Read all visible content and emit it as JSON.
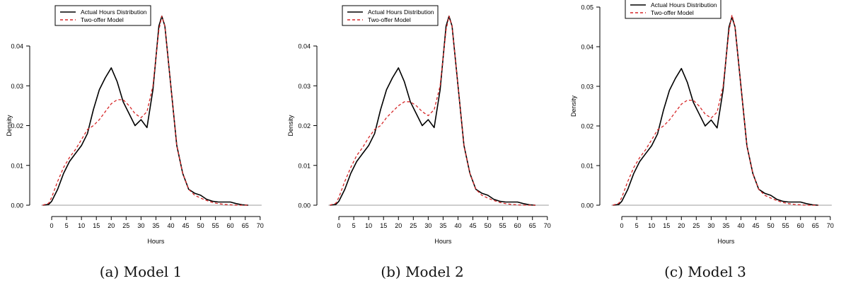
{
  "colors": {
    "actual": "#000000",
    "model": "#d62728",
    "axis": "#000000",
    "baseline": "#9e9e9e"
  },
  "chart_data": [
    {
      "type": "line",
      "caption": "(a) Model 1",
      "xlabel": "Hours",
      "ylabel": "Density",
      "xlim": [
        -5,
        71
      ],
      "ylim": [
        0,
        0.048
      ],
      "xticks": [
        0,
        5,
        10,
        15,
        20,
        25,
        30,
        35,
        40,
        45,
        50,
        55,
        60,
        65,
        70
      ],
      "yticks": [
        0.0,
        0.01,
        0.02,
        0.03,
        0.04
      ],
      "ytick_labels": [
        "0.00",
        "0.01",
        "0.02",
        "0.03",
        "0.04"
      ],
      "legend": "top-left",
      "series": [
        {
          "name": "Actual Hours Distribution",
          "style": "solid",
          "color": "#000000",
          "x": [
            -3,
            -1,
            0,
            2,
            4,
            6,
            8,
            10,
            12,
            14,
            16,
            18,
            20,
            22,
            24,
            26,
            28,
            30,
            32,
            34,
            36,
            37,
            38,
            40,
            42,
            44,
            46,
            48,
            50,
            52,
            54,
            56,
            58,
            60,
            62,
            64,
            66
          ],
          "y": [
            0.0,
            0.0002,
            0.001,
            0.004,
            0.008,
            0.011,
            0.013,
            0.015,
            0.018,
            0.024,
            0.029,
            0.032,
            0.0345,
            0.031,
            0.026,
            0.023,
            0.02,
            0.0215,
            0.0195,
            0.029,
            0.045,
            0.0475,
            0.045,
            0.03,
            0.015,
            0.008,
            0.004,
            0.003,
            0.0025,
            0.0015,
            0.001,
            0.0008,
            0.0008,
            0.0008,
            0.0004,
            0.0001,
            0.0
          ]
        },
        {
          "name": "Two-offer Model",
          "style": "dashed",
          "color": "#d62728",
          "x": [
            -3,
            -1,
            0,
            2,
            4,
            6,
            8,
            10,
            12,
            14,
            16,
            18,
            20,
            22,
            24,
            26,
            28,
            30,
            32,
            34,
            36,
            37,
            38,
            40,
            42,
            44,
            46,
            48,
            50,
            52,
            54,
            56,
            58,
            60,
            62,
            64,
            66
          ],
          "y": [
            0.0,
            0.0005,
            0.002,
            0.006,
            0.0095,
            0.012,
            0.014,
            0.0165,
            0.019,
            0.02,
            0.0215,
            0.0235,
            0.0255,
            0.0265,
            0.0265,
            0.025,
            0.023,
            0.022,
            0.0235,
            0.03,
            0.044,
            0.0475,
            0.045,
            0.03,
            0.015,
            0.008,
            0.004,
            0.0025,
            0.0018,
            0.0012,
            0.0007,
            0.0004,
            0.0002,
            0.0001,
            0.0,
            0.0,
            0.0
          ]
        }
      ]
    },
    {
      "type": "line",
      "caption": "(b) Model 2",
      "xlabel": "Hours",
      "ylabel": "Density",
      "xlim": [
        -5,
        71
      ],
      "ylim": [
        0,
        0.048
      ],
      "xticks": [
        0,
        5,
        10,
        15,
        20,
        25,
        30,
        35,
        40,
        45,
        50,
        55,
        60,
        65,
        70
      ],
      "yticks": [
        0.0,
        0.01,
        0.02,
        0.03,
        0.04
      ],
      "ytick_labels": [
        "0.00",
        "0.01",
        "0.02",
        "0.03",
        "0.04"
      ],
      "legend": "top-left",
      "series": [
        {
          "name": "Actual Hours Distribution",
          "style": "solid",
          "color": "#000000",
          "x": [
            -3,
            -1,
            0,
            2,
            4,
            6,
            8,
            10,
            12,
            14,
            16,
            18,
            20,
            22,
            24,
            26,
            28,
            30,
            32,
            34,
            36,
            37,
            38,
            40,
            42,
            44,
            46,
            48,
            50,
            52,
            54,
            56,
            58,
            60,
            62,
            64,
            66
          ],
          "y": [
            0.0,
            0.0002,
            0.001,
            0.004,
            0.008,
            0.011,
            0.013,
            0.015,
            0.018,
            0.024,
            0.029,
            0.032,
            0.0345,
            0.031,
            0.026,
            0.023,
            0.02,
            0.0215,
            0.0195,
            0.029,
            0.045,
            0.0475,
            0.045,
            0.03,
            0.015,
            0.008,
            0.004,
            0.003,
            0.0025,
            0.0015,
            0.001,
            0.0008,
            0.0008,
            0.0008,
            0.0004,
            0.0001,
            0.0
          ]
        },
        {
          "name": "Two-offer Model",
          "style": "dashed",
          "color": "#d62728",
          "x": [
            -3,
            -1,
            0,
            2,
            4,
            6,
            8,
            10,
            12,
            14,
            16,
            18,
            20,
            22,
            24,
            26,
            28,
            30,
            32,
            34,
            36,
            37,
            38,
            40,
            42,
            44,
            46,
            48,
            50,
            52,
            54,
            56,
            58,
            60,
            62,
            64,
            66
          ],
          "y": [
            0.0,
            0.0005,
            0.002,
            0.006,
            0.0095,
            0.0125,
            0.0145,
            0.017,
            0.019,
            0.02,
            0.022,
            0.0235,
            0.025,
            0.026,
            0.026,
            0.025,
            0.0235,
            0.0225,
            0.024,
            0.03,
            0.044,
            0.0475,
            0.045,
            0.03,
            0.015,
            0.008,
            0.004,
            0.0025,
            0.0018,
            0.0012,
            0.0007,
            0.0004,
            0.0002,
            0.0001,
            0.0,
            0.0,
            0.0
          ]
        }
      ]
    },
    {
      "type": "line",
      "caption": "(c) Model 3",
      "xlabel": "Hours",
      "ylabel": "Density",
      "xlim": [
        -5,
        71
      ],
      "ylim": [
        0,
        0.05
      ],
      "xticks": [
        0,
        5,
        10,
        15,
        20,
        25,
        30,
        35,
        40,
        45,
        50,
        55,
        60,
        65,
        70
      ],
      "yticks": [
        0.0,
        0.01,
        0.02,
        0.03,
        0.04,
        0.05
      ],
      "ytick_labels": [
        "0.00",
        "0.01",
        "0.02",
        "0.03",
        "0.04",
        "0.05"
      ],
      "legend": "top-left",
      "series": [
        {
          "name": "Actual Hours Distribution",
          "style": "solid",
          "color": "#000000",
          "x": [
            -3,
            -1,
            0,
            2,
            4,
            6,
            8,
            10,
            12,
            14,
            16,
            18,
            20,
            22,
            24,
            26,
            28,
            30,
            32,
            34,
            36,
            37,
            38,
            40,
            42,
            44,
            46,
            48,
            50,
            52,
            54,
            56,
            58,
            60,
            62,
            64,
            66
          ],
          "y": [
            0.0,
            0.0002,
            0.001,
            0.004,
            0.008,
            0.011,
            0.013,
            0.015,
            0.018,
            0.024,
            0.029,
            0.032,
            0.0345,
            0.031,
            0.026,
            0.023,
            0.02,
            0.0215,
            0.0195,
            0.029,
            0.045,
            0.0475,
            0.045,
            0.03,
            0.015,
            0.008,
            0.004,
            0.003,
            0.0025,
            0.0015,
            0.001,
            0.0008,
            0.0008,
            0.0008,
            0.0004,
            0.0001,
            0.0
          ]
        },
        {
          "name": "Two-offer Model",
          "style": "dashed",
          "color": "#d62728",
          "x": [
            -3,
            -1,
            0,
            2,
            4,
            6,
            8,
            10,
            12,
            14,
            16,
            18,
            20,
            22,
            24,
            26,
            28,
            30,
            32,
            34,
            36,
            37,
            38,
            40,
            42,
            44,
            46,
            48,
            50,
            52,
            54,
            56,
            58,
            60,
            62,
            64,
            66
          ],
          "y": [
            0.0,
            0.0005,
            0.002,
            0.006,
            0.0095,
            0.012,
            0.014,
            0.0165,
            0.019,
            0.02,
            0.0215,
            0.0235,
            0.0255,
            0.0265,
            0.0265,
            0.025,
            0.023,
            0.022,
            0.0235,
            0.03,
            0.044,
            0.048,
            0.045,
            0.03,
            0.015,
            0.008,
            0.004,
            0.0025,
            0.0018,
            0.0012,
            0.0007,
            0.0004,
            0.0002,
            0.0001,
            0.0,
            0.0,
            0.0
          ]
        }
      ]
    }
  ]
}
